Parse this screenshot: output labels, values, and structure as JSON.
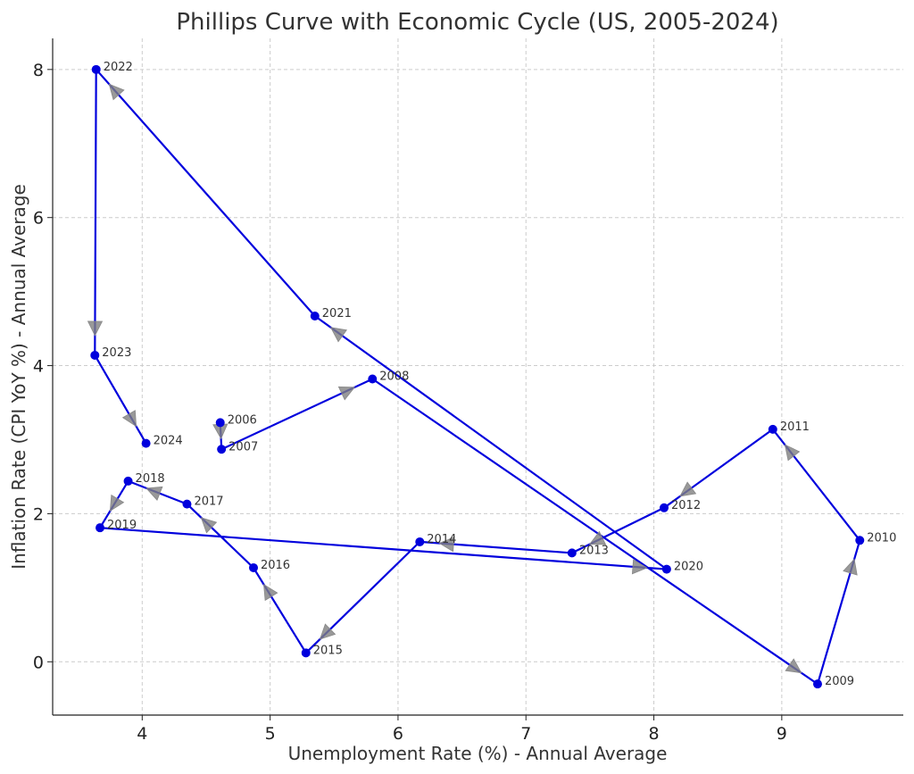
{
  "chart_data": {
    "type": "line",
    "title": "Phillips Curve with Economic Cycle (US, 2005-2024)",
    "xlabel": "Unemployment Rate (%) - Annual Average",
    "ylabel": "Inflation Rate (CPI YoY %) - Annual Average",
    "xlim": [
      3.3,
      9.95
    ],
    "ylim": [
      -0.72,
      8.42
    ],
    "xticks": [
      4,
      5,
      6,
      7,
      8,
      9
    ],
    "yticks": [
      0,
      2,
      4,
      6,
      8
    ],
    "grid": true,
    "series_color": "#0000dd",
    "arrow_color": "#808080",
    "points": [
      {
        "label": "2006",
        "x": 4.61,
        "y": 3.23
      },
      {
        "label": "2007",
        "x": 4.62,
        "y": 2.87
      },
      {
        "label": "2008",
        "x": 5.8,
        "y": 3.82
      },
      {
        "label": "2009",
        "x": 9.28,
        "y": -0.3
      },
      {
        "label": "2010",
        "x": 9.61,
        "y": 1.64
      },
      {
        "label": "2011",
        "x": 8.93,
        "y": 3.14
      },
      {
        "label": "2012",
        "x": 8.08,
        "y": 2.08
      },
      {
        "label": "2013",
        "x": 7.36,
        "y": 1.47
      },
      {
        "label": "2014",
        "x": 6.17,
        "y": 1.62
      },
      {
        "label": "2015",
        "x": 5.28,
        "y": 0.12
      },
      {
        "label": "2016",
        "x": 4.87,
        "y": 1.27
      },
      {
        "label": "2017",
        "x": 4.35,
        "y": 2.13
      },
      {
        "label": "2018",
        "x": 3.89,
        "y": 2.44
      },
      {
        "label": "2019",
        "x": 3.67,
        "y": 1.81
      },
      {
        "label": "2020",
        "x": 8.1,
        "y": 1.25
      },
      {
        "label": "2021",
        "x": 5.35,
        "y": 4.67
      },
      {
        "label": "2022",
        "x": 3.64,
        "y": 8.0
      },
      {
        "label": "2023",
        "x": 3.63,
        "y": 4.14
      },
      {
        "label": "2024",
        "x": 4.03,
        "y": 2.95
      }
    ]
  }
}
